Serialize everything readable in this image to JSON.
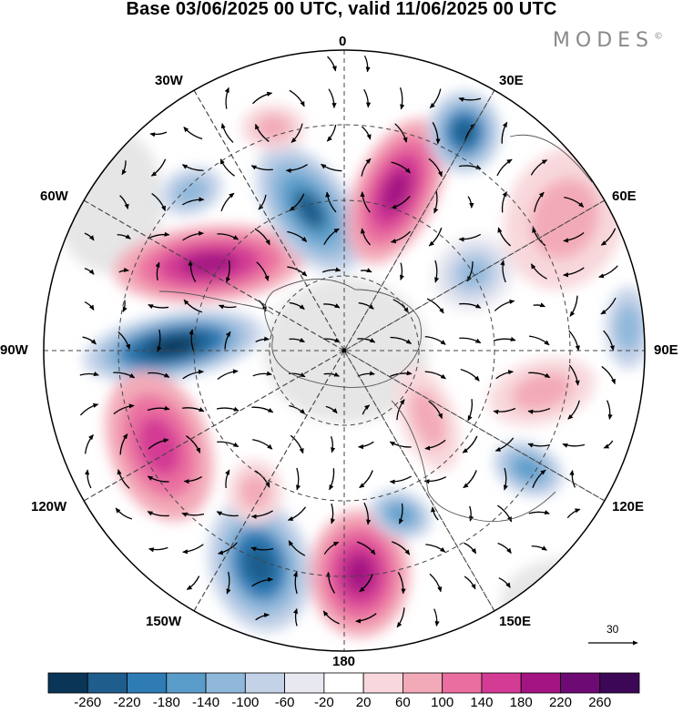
{
  "title": "Base 03/06/2025 00 UTC, valid 11/06/2025 00 UTC",
  "brand": "MODES",
  "brand_mark": "©",
  "map": {
    "projection": "south-polar-stereographic",
    "longitude_labels": {
      "north": "0",
      "n30e": "30E",
      "n60e": "60E",
      "east": "90E",
      "s120e": "120E",
      "s150e": "150E",
      "south": "180",
      "s150w": "150W",
      "s120w": "120W",
      "west": "90W",
      "n60w": "60W",
      "n30w": "30W"
    },
    "wind_reference_vector": "30"
  },
  "colorbar": {
    "labels": [
      "-260",
      "-220",
      "-180",
      "-140",
      "-100",
      "-60",
      "-20",
      "20",
      "60",
      "100",
      "140",
      "180",
      "220",
      "260"
    ],
    "colors": [
      "#0b3556",
      "#1e5d8c",
      "#2f7cb5",
      "#5a9cc9",
      "#8fb8da",
      "#c4d2e8",
      "#e8e8f0",
      "#ffffff",
      "#f8d8dc",
      "#f3aab8",
      "#ea6fa0",
      "#d33b94",
      "#a41583",
      "#6e0a73",
      "#3d0757"
    ]
  },
  "colors": {
    "land_shade": "#cfcfcf",
    "grid": "#444444"
  }
}
